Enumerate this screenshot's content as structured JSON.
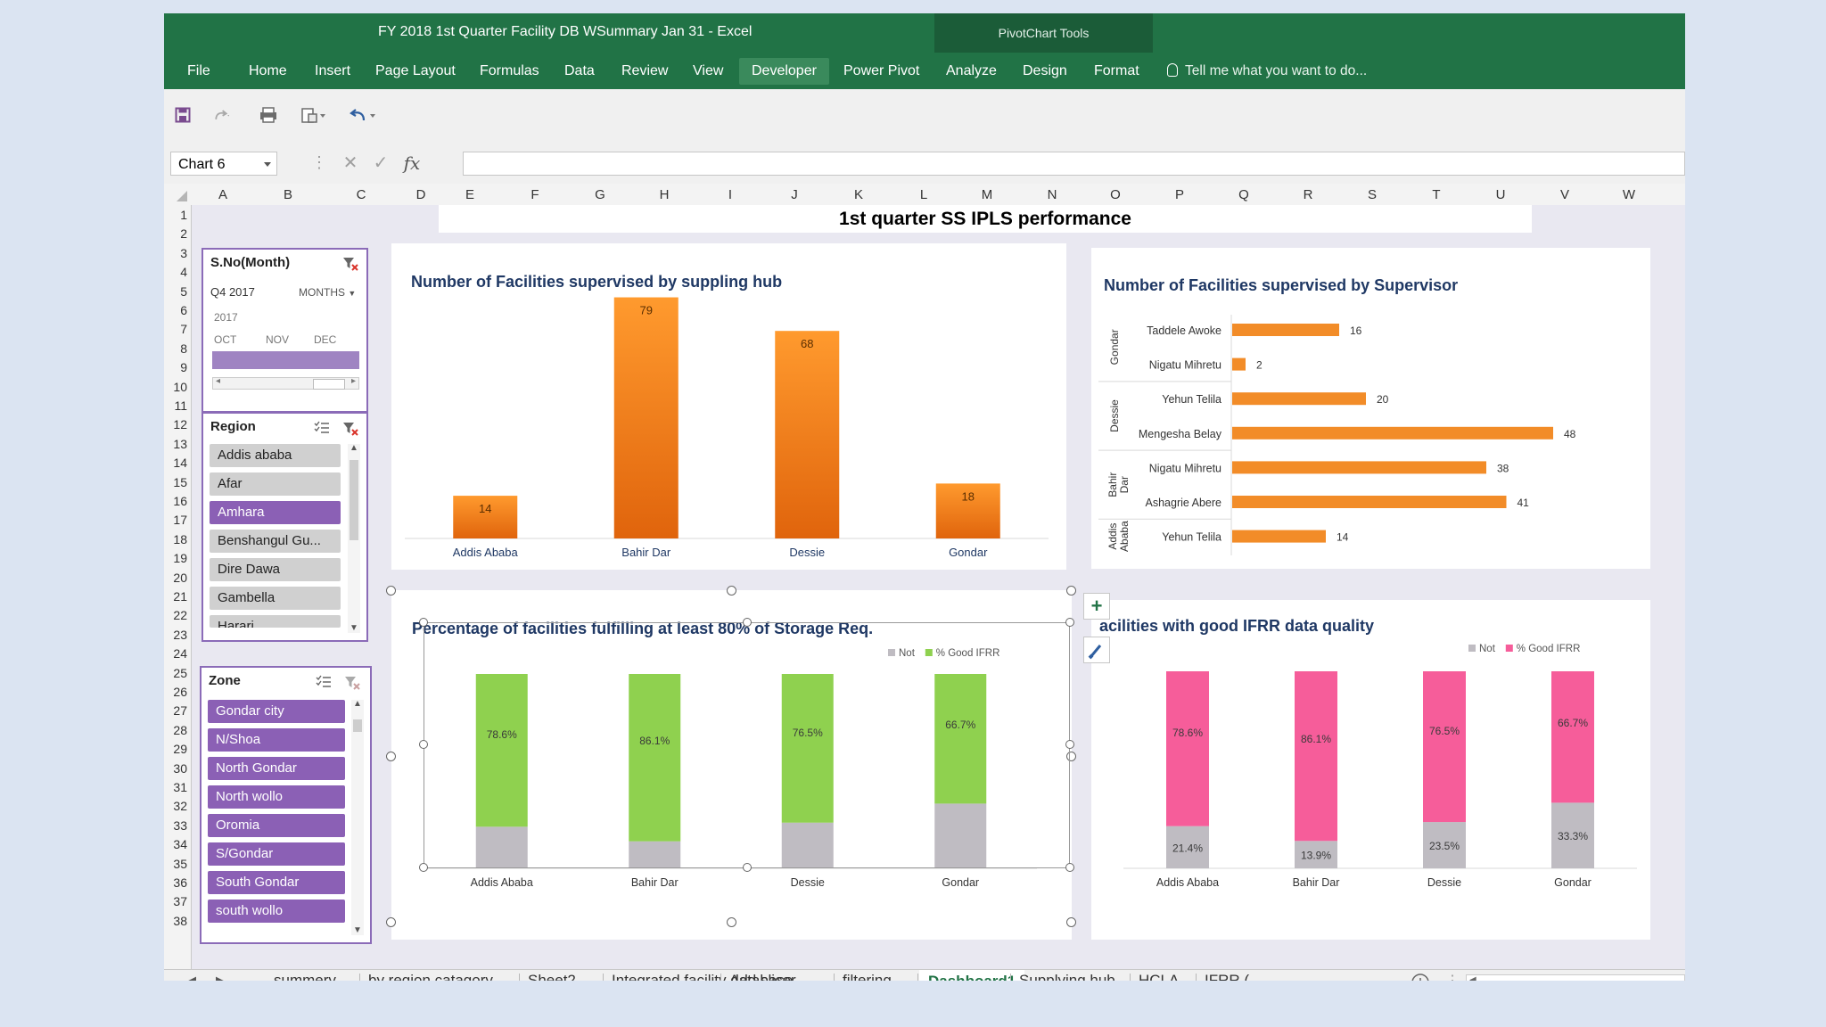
{
  "window": {
    "title": "FY 2018 1st Quarter Facility DB WSummary Jan 31 - Excel",
    "context_tab_group": "PivotChart Tools"
  },
  "ribbon": {
    "tabs": [
      "File",
      "Home",
      "Insert",
      "Page Layout",
      "Formulas",
      "Data",
      "Review",
      "View",
      "Developer",
      "Power Pivot",
      "Analyze",
      "Design",
      "Format"
    ],
    "active_tab": "Developer",
    "tell_me": "Tell me what you want to do..."
  },
  "formula_bar": {
    "name_box": "Chart 6",
    "formula": ""
  },
  "columns": [
    "A",
    "B",
    "C",
    "D",
    "E",
    "F",
    "G",
    "H",
    "I",
    "J",
    "K",
    "L",
    "M",
    "N",
    "O",
    "P",
    "Q",
    "R",
    "S",
    "T",
    "U",
    "V",
    "W"
  ],
  "rows": [
    "1",
    "2",
    "3",
    "4",
    "5",
    "6",
    "7",
    "8",
    "9",
    "10",
    "11",
    "12",
    "13",
    "14",
    "15",
    "16",
    "17",
    "18",
    "19",
    "20",
    "21",
    "22",
    "23",
    "24",
    "25",
    "26",
    "27",
    "28",
    "29",
    "30",
    "31",
    "32",
    "33",
    "34",
    "35",
    "36",
    "37",
    "38"
  ],
  "dashboard": {
    "title": "1st quarter SS IPLS performance"
  },
  "timeline": {
    "header": "S.No(Month)",
    "period": "Q4 2017",
    "level": "MONTHS",
    "year": "2017",
    "months": [
      "OCT",
      "NOV",
      "DEC"
    ],
    "selected_fraction": 1.0
  },
  "region_slicer": {
    "header": "Region",
    "items": [
      {
        "label": "Addis ababa",
        "selected": false
      },
      {
        "label": "Afar",
        "selected": false
      },
      {
        "label": "Amhara",
        "selected": true
      },
      {
        "label": "Benshangul Gu...",
        "selected": false
      },
      {
        "label": "Dire Dawa",
        "selected": false
      },
      {
        "label": "Gambella",
        "selected": false
      },
      {
        "label": "Harari",
        "selected": false
      }
    ]
  },
  "zone_slicer": {
    "header": "Zone",
    "items": [
      {
        "label": "Gondar city",
        "selected": true
      },
      {
        "label": "N/Shoa",
        "selected": true
      },
      {
        "label": "North Gondar",
        "selected": true
      },
      {
        "label": "North wollo",
        "selected": true
      },
      {
        "label": "Oromia",
        "selected": true
      },
      {
        "label": "S/Gondar",
        "selected": true
      },
      {
        "label": "South Gondar",
        "selected": true
      },
      {
        "label": "south wollo",
        "selected": true
      }
    ]
  },
  "chart_data": [
    {
      "id": "hub",
      "type": "bar",
      "title": "Number of Facilities supervised by suppling hub",
      "categories": [
        "Addis Ababa",
        "Bahir Dar",
        "Dessie",
        "Gondar"
      ],
      "values": [
        14,
        79,
        68,
        18
      ],
      "ylim": [
        0,
        85
      ],
      "grid": false,
      "color": "#f57f17"
    },
    {
      "id": "supervisor",
      "type": "bar",
      "orientation": "horizontal",
      "title": "Number of Facilities supervised by Supervisor",
      "groups": [
        {
          "name": "Gondar",
          "items": [
            {
              "label": "Taddele Awoke",
              "value": 16
            },
            {
              "label": "Nigatu Mihretu",
              "value": 2
            }
          ]
        },
        {
          "name": "Dessie",
          "items": [
            {
              "label": "Yehun Telila",
              "value": 20
            },
            {
              "label": "Mengesha Belay",
              "value": 48
            }
          ]
        },
        {
          "name": "Bahir Dar",
          "items": [
            {
              "label": "Nigatu Mihretu",
              "value": 38
            },
            {
              "label": "Ashagrie Abere",
              "value": 41
            }
          ]
        },
        {
          "name": "Addis Ababa",
          "items": [
            {
              "label": "Yehun Telila",
              "value": 14
            }
          ]
        }
      ],
      "xlim": [
        0,
        50
      ],
      "color": "#f28c28"
    },
    {
      "id": "storage",
      "type": "bar",
      "stacked": true,
      "title": "Percentage of facilities fulfilling at least 80% of Storage Req.",
      "categories": [
        "Addis Ababa",
        "Bahir Dar",
        "Dessie",
        "Gondar"
      ],
      "series": [
        {
          "name": "Not",
          "values": [
            21.4,
            13.9,
            23.5,
            33.3
          ],
          "color": "#bfbcc2"
        },
        {
          "name": "% Good IFRR",
          "values": [
            78.6,
            86.1,
            76.5,
            66.7
          ],
          "labels": [
            "78.6%",
            "86.1%",
            "76.5%",
            "66.7%"
          ],
          "color": "#8fd14f"
        }
      ],
      "ylim": [
        0,
        100
      ],
      "legend": "top-right"
    },
    {
      "id": "ifrr",
      "type": "bar",
      "stacked": true,
      "title": "acilities with good IFRR data quality",
      "categories": [
        "Addis Ababa",
        "Bahir Dar",
        "Dessie",
        "Gondar"
      ],
      "series": [
        {
          "name": "Not",
          "values": [
            21.4,
            13.9,
            23.5,
            33.3
          ],
          "labels": [
            "21.4%",
            "13.9%",
            "23.5%",
            "33.3%"
          ],
          "color": "#bfbcc2"
        },
        {
          "name": "% Good IFRR",
          "values": [
            78.6,
            86.1,
            76.5,
            66.7
          ],
          "labels": [
            "78.6%",
            "86.1%",
            "76.5%",
            "66.7%"
          ],
          "color": "#f65d9a"
        }
      ],
      "ylim": [
        0,
        100
      ],
      "legend": "top-right"
    }
  ],
  "sheet_tabs": {
    "tabs": [
      "summery",
      "by region catagory",
      "Sheet2",
      "Integrated facility database",
      "Add slicer",
      "filtering",
      "Dashboard1",
      "Supplying hub",
      "HCLA",
      "IFRR (..."
    ],
    "active": "Dashboard1",
    "ellipsis": "..."
  },
  "icons": [
    "save-icon",
    "redo-icon",
    "print-icon",
    "form-icon",
    "undo-icon",
    "cancel-icon",
    "enter-icon",
    "function-icon",
    "filter-clear-icon",
    "multi-select-icon",
    "chart-elements-icon",
    "chart-styles-icon",
    "add-sheet-icon"
  ]
}
